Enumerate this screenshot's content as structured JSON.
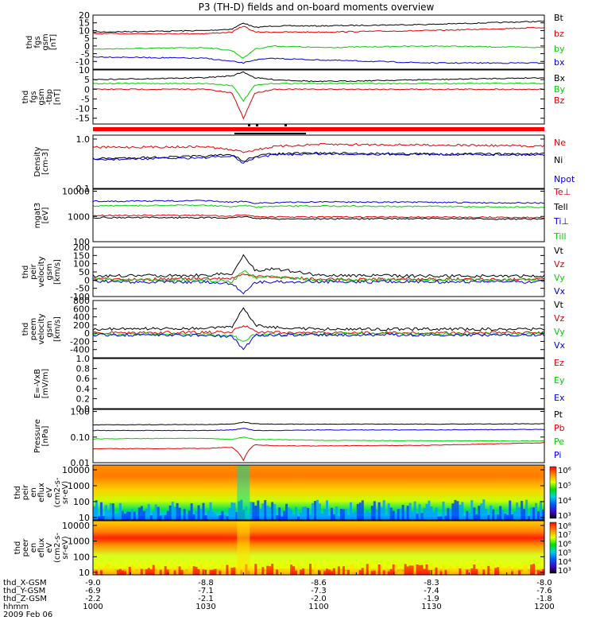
{
  "title": "P3 (TH-D) fields and on-board moments overview",
  "colors": {
    "black": "#000000",
    "red": "#e00000",
    "green": "#00d000",
    "blue": "#0000e0"
  },
  "chart_data": [
    {
      "type": "line",
      "panel": "fgs_gsm",
      "ylabel": [
        "thd",
        "fgs",
        "gsm",
        "[nT]"
      ],
      "ylim": [
        -15,
        20
      ],
      "ticks": [
        -10,
        -5,
        0,
        5,
        10,
        15,
        20
      ],
      "series": [
        {
          "name": "Bt",
          "color": "black",
          "x": [
            "1000",
            "1030",
            "1037",
            "1040",
            "1043",
            "1048",
            "1100",
            "1130",
            "1200"
          ],
          "y": [
            9,
            10,
            11,
            15,
            12,
            13,
            13,
            14,
            16
          ]
        },
        {
          "name": "bz",
          "color": "red",
          "x": [
            "1000",
            "1030",
            "1037",
            "1040",
            "1043",
            "1048",
            "1100",
            "1130",
            "1200"
          ],
          "y": [
            8,
            8,
            9,
            13,
            9,
            9,
            9,
            10,
            12
          ]
        },
        {
          "name": "by",
          "color": "green",
          "x": [
            "1000",
            "1030",
            "1037",
            "1040",
            "1043",
            "1048",
            "1100",
            "1130",
            "1200"
          ],
          "y": [
            -2,
            -1,
            -3,
            -8,
            -2,
            0,
            -1,
            0,
            -1
          ]
        },
        {
          "name": "bx",
          "color": "blue",
          "x": [
            "1000",
            "1030",
            "1037",
            "1040",
            "1043",
            "1048",
            "1100",
            "1130",
            "1200"
          ],
          "y": [
            -7,
            -8,
            -10,
            -11,
            -9,
            -8,
            -9,
            -11,
            -11
          ]
        }
      ]
    },
    {
      "type": "line",
      "panel": "fgs_gsm_detrended",
      "ylabel": [
        "thd",
        "fgs",
        "gsm",
        "-tbp",
        "[nT]"
      ],
      "ylim": [
        -18,
        10
      ],
      "ticks": [
        -15,
        -10,
        -5,
        0,
        5,
        10
      ],
      "series": [
        {
          "name": "Bx",
          "color": "black",
          "x": [
            "1000",
            "1030",
            "1037",
            "1040",
            "1043",
            "1048",
            "1100",
            "1130",
            "1200"
          ],
          "y": [
            5,
            6,
            7,
            9,
            6,
            5,
            4,
            5,
            6
          ]
        },
        {
          "name": "By",
          "color": "green",
          "x": [
            "1000",
            "1030",
            "1037",
            "1040",
            "1043",
            "1048",
            "1100",
            "1130",
            "1200"
          ],
          "y": [
            3,
            3,
            2,
            -6,
            2,
            3,
            3,
            3,
            3
          ]
        },
        {
          "name": "Bz",
          "color": "red",
          "x": [
            "1000",
            "1030",
            "1037",
            "1040",
            "1043",
            "1048",
            "1100",
            "1130",
            "1200"
          ],
          "y": [
            0,
            0,
            -2,
            -15,
            -2,
            0,
            0,
            0,
            0
          ]
        }
      ]
    },
    {
      "type": "line",
      "panel": "density",
      "log": true,
      "ylabel": [
        "Density",
        "[cm-3]"
      ],
      "ylim": [
        0.1,
        1.2
      ],
      "ticks": [
        0.1,
        1.0
      ],
      "tick_labels": [
        "0.1",
        "1.0"
      ],
      "series": [
        {
          "name": "Ne",
          "color": "red",
          "x": [
            "1000",
            "1030",
            "1037",
            "1040",
            "1043",
            "1048",
            "1100",
            "1130",
            "1200"
          ],
          "y": [
            0.68,
            0.7,
            0.6,
            0.55,
            0.6,
            0.7,
            0.78,
            0.76,
            0.72
          ]
        },
        {
          "name": "Ni",
          "color": "black",
          "x": [
            "1000",
            "1030",
            "1037",
            "1040",
            "1043",
            "1048",
            "1100",
            "1130",
            "1200"
          ],
          "y": [
            0.4,
            0.45,
            0.48,
            0.35,
            0.45,
            0.5,
            0.52,
            0.5,
            0.5
          ]
        },
        {
          "name": "Npot",
          "color": "blue",
          "x": [
            "1000",
            "1030",
            "1037",
            "1040",
            "1043",
            "1048",
            "1100",
            "1130",
            "1200"
          ],
          "y": [
            0.38,
            0.42,
            0.45,
            0.32,
            0.42,
            0.48,
            0.5,
            0.49,
            0.48
          ]
        }
      ]
    },
    {
      "type": "line",
      "panel": "temperature",
      "log": true,
      "ylabel": [
        "mgat3",
        "[eV]"
      ],
      "ylim": [
        100,
        12000
      ],
      "ticks": [
        100,
        1000,
        10000
      ],
      "tick_labels": [
        "100",
        "1000",
        "10000"
      ],
      "series": [
        {
          "name": "Te⊥",
          "color": "red",
          "x": [
            "1000",
            "1030",
            "1037",
            "1040",
            "1043",
            "1048",
            "1100",
            "1130",
            "1200"
          ],
          "y": [
            1100,
            1100,
            1000,
            1200,
            1000,
            950,
            950,
            950,
            900
          ]
        },
        {
          "name": "Tell",
          "color": "black",
          "x": [
            "1000",
            "1030",
            "1037",
            "1040",
            "1043",
            "1048",
            "1100",
            "1130",
            "1200"
          ],
          "y": [
            900,
            900,
            850,
            1000,
            850,
            800,
            800,
            820,
            780
          ]
        },
        {
          "name": "Ti⊥",
          "color": "blue",
          "x": [
            "1000",
            "1030",
            "1037",
            "1040",
            "1043",
            "1048",
            "1100",
            "1130",
            "1200"
          ],
          "y": [
            4000,
            4200,
            3600,
            4000,
            3400,
            3500,
            3800,
            3600,
            3400
          ]
        },
        {
          "name": "Till",
          "color": "green",
          "x": [
            "1000",
            "1030",
            "1037",
            "1040",
            "1043",
            "1048",
            "1100",
            "1130",
            "1200"
          ],
          "y": [
            2600,
            2800,
            2400,
            2800,
            2300,
            2500,
            2600,
            2500,
            2300
          ]
        }
      ]
    },
    {
      "type": "line",
      "panel": "peir_velocity",
      "ylabel": [
        "thd",
        "peir",
        "velocity",
        "gsm",
        "[km/s]"
      ],
      "ylim": [
        -100,
        200
      ],
      "ticks": [
        -100,
        -50,
        0,
        50,
        100,
        150,
        200
      ],
      "series": [
        {
          "name": "Vt",
          "color": "black",
          "x": [
            "1000",
            "1030",
            "1037",
            "1040",
            "1043",
            "1048",
            "1100",
            "1130",
            "1200"
          ],
          "y": [
            25,
            30,
            40,
            150,
            60,
            70,
            30,
            25,
            25
          ]
        },
        {
          "name": "Vz",
          "color": "red",
          "x": [
            "1000",
            "1030",
            "1037",
            "1040",
            "1043",
            "1048",
            "1100",
            "1130",
            "1200"
          ],
          "y": [
            5,
            8,
            10,
            40,
            20,
            20,
            5,
            5,
            5
          ]
        },
        {
          "name": "Vy",
          "color": "green",
          "x": [
            "1000",
            "1030",
            "1037",
            "1040",
            "1043",
            "1048",
            "1100",
            "1130",
            "1200"
          ],
          "y": [
            0,
            0,
            -10,
            60,
            15,
            25,
            0,
            0,
            0
          ]
        },
        {
          "name": "Vx",
          "color": "blue",
          "x": [
            "1000",
            "1030",
            "1037",
            "1040",
            "1043",
            "1048",
            "1100",
            "1130",
            "1200"
          ],
          "y": [
            -10,
            -12,
            -20,
            -80,
            -15,
            -10,
            -10,
            -10,
            -10
          ]
        }
      ]
    },
    {
      "type": "line",
      "panel": "peem_velocity",
      "ylabel": [
        "thd",
        "peem",
        "velocity",
        "gsm",
        "[km/s]"
      ],
      "ylim": [
        -600,
        800
      ],
      "ticks": [
        -400,
        -200,
        0,
        200,
        400,
        600,
        800
      ],
      "series": [
        {
          "name": "Vt",
          "color": "black",
          "x": [
            "1000",
            "1030",
            "1037",
            "1040",
            "1043",
            "1048",
            "1100",
            "1130",
            "1200"
          ],
          "y": [
            100,
            120,
            150,
            650,
            200,
            150,
            100,
            100,
            100
          ]
        },
        {
          "name": "Vz",
          "color": "red",
          "x": [
            "1000",
            "1030",
            "1037",
            "1040",
            "1043",
            "1048",
            "1100",
            "1130",
            "1200"
          ],
          "y": [
            10,
            20,
            30,
            200,
            40,
            20,
            10,
            10,
            10
          ]
        },
        {
          "name": "Vy",
          "color": "green",
          "x": [
            "1000",
            "1030",
            "1037",
            "1040",
            "1043",
            "1048",
            "1100",
            "1130",
            "1200"
          ],
          "y": [
            -20,
            -30,
            -50,
            -200,
            -40,
            -30,
            -20,
            -20,
            -20
          ]
        },
        {
          "name": "Vx",
          "color": "blue",
          "x": [
            "1000",
            "1030",
            "1037",
            "1040",
            "1043",
            "1048",
            "1100",
            "1130",
            "1200"
          ],
          "y": [
            -40,
            -50,
            -80,
            -400,
            -60,
            -40,
            -40,
            -40,
            -40
          ]
        }
      ]
    },
    {
      "type": "line",
      "panel": "efield",
      "ylabel": [
        "E=-VxB",
        "[mV/m]"
      ],
      "ylim": [
        0,
        1.0
      ],
      "ticks": [
        0,
        0.2,
        0.4,
        0.6,
        0.8,
        1.0
      ],
      "tick_labels": [
        "0.0",
        "0.2",
        "0.4",
        "0.6",
        "0.8",
        "1.0"
      ],
      "series": [
        {
          "name": "Ez",
          "color": "red",
          "x": [],
          "y": []
        },
        {
          "name": "Ey",
          "color": "green",
          "x": [],
          "y": []
        },
        {
          "name": "Ex",
          "color": "blue",
          "x": [],
          "y": []
        }
      ]
    },
    {
      "type": "line",
      "panel": "pressure",
      "log": true,
      "ylabel": [
        "Pressure",
        "[nPa]"
      ],
      "ylim": [
        0.01,
        1.2
      ],
      "ticks": [
        0.01,
        0.1,
        1.0
      ],
      "tick_labels": [
        "0.01",
        "0.10",
        "1.00"
      ],
      "series": [
        {
          "name": "Pt",
          "color": "black",
          "x": [
            "1000",
            "1030",
            "1037",
            "1040",
            "1043",
            "1048",
            "1100",
            "1130",
            "1200"
          ],
          "y": [
            0.3,
            0.31,
            0.32,
            0.38,
            0.33,
            0.32,
            0.32,
            0.32,
            0.33
          ]
        },
        {
          "name": "Pb",
          "color": "red",
          "x": [
            "1000",
            "1030",
            "1037",
            "1040",
            "1043",
            "1048",
            "1100",
            "1130",
            "1200"
          ],
          "y": [
            0.035,
            0.036,
            0.04,
            0.012,
            0.05,
            0.046,
            0.045,
            0.048,
            0.06
          ]
        },
        {
          "name": "Pe",
          "color": "green",
          "x": [
            "1000",
            "1030",
            "1037",
            "1040",
            "1043",
            "1048",
            "1100",
            "1130",
            "1200"
          ],
          "y": [
            0.085,
            0.09,
            0.08,
            0.1,
            0.08,
            0.08,
            0.075,
            0.072,
            0.07
          ]
        },
        {
          "name": "Pi",
          "color": "blue",
          "x": [
            "1000",
            "1030",
            "1037",
            "1040",
            "1043",
            "1048",
            "1100",
            "1130",
            "1200"
          ],
          "y": [
            0.18,
            0.18,
            0.19,
            0.22,
            0.18,
            0.18,
            0.19,
            0.19,
            0.2
          ]
        }
      ]
    },
    {
      "type": "heatmap",
      "panel": "peir_spectrogram",
      "log": true,
      "ylabel": [
        "thd",
        "peir",
        "en",
        "eflux",
        "eV",
        "(cm2-s-",
        "sr-eV)"
      ],
      "ylim": [
        7,
        20000
      ],
      "ticks": [
        10,
        100,
        1000,
        10000
      ],
      "tick_labels": [
        "10",
        "100",
        "1000",
        "10000"
      ],
      "colorbar_labels": [
        "10³",
        "10⁴",
        "10⁵",
        "10⁶"
      ]
    },
    {
      "type": "heatmap",
      "panel": "peer_spectrogram",
      "log": true,
      "ylabel": [
        "thd",
        "peer",
        "en",
        "eflux",
        "eV",
        "(cm2-s-",
        "sr-eV)"
      ],
      "ylim": [
        7,
        20000
      ],
      "ticks": [
        10,
        100,
        1000,
        10000
      ],
      "tick_labels": [
        "10",
        "100",
        "1000",
        "10000"
      ],
      "colorbar_labels": [
        "10³",
        "10⁴",
        "10⁵",
        "10⁶",
        "10⁷",
        "10⁸"
      ]
    }
  ],
  "x_axis": {
    "rows": [
      {
        "label": "thd_X-GSM",
        "values": [
          "-9.0",
          "-8.8",
          "-8.6",
          "-8.3",
          "-8.0"
        ]
      },
      {
        "label": "thd_Y-GSM",
        "values": [
          "-6.9",
          "-7.1",
          "-7.3",
          "-7.4",
          "-7.6"
        ]
      },
      {
        "label": "thd_Z-GSM",
        "values": [
          "-2.2",
          "-2.1",
          "-2.0",
          "-1.9",
          "-1.8"
        ]
      },
      {
        "label": "hhmm",
        "values": [
          "1000",
          "1030",
          "1100",
          "1130",
          "1200"
        ]
      }
    ],
    "date": "2009 Feb 06"
  }
}
